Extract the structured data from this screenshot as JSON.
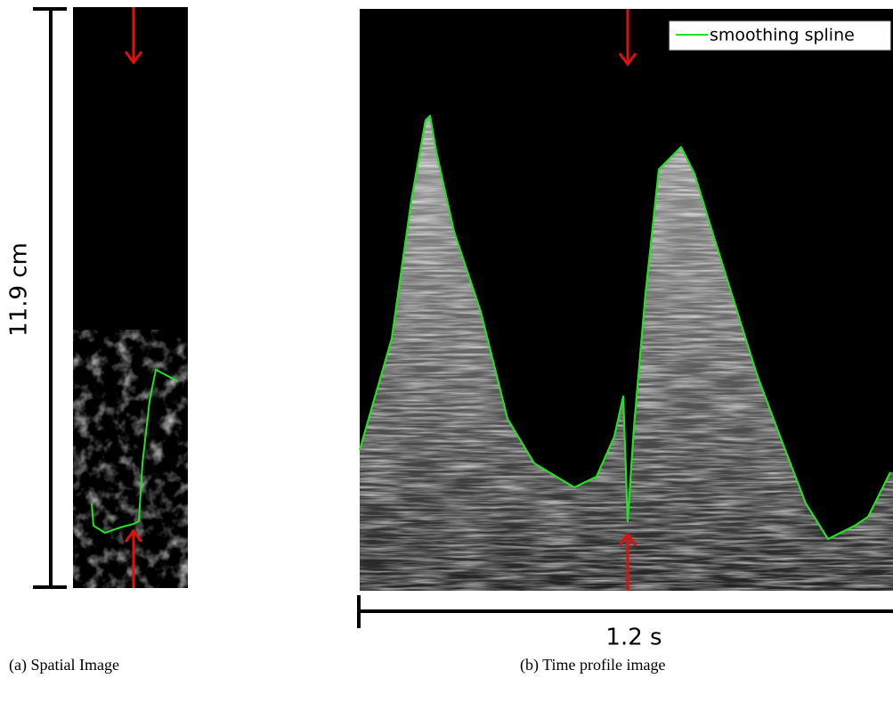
{
  "panel_a": {
    "scale_label": "11.9 cm",
    "caption": "(a) Spatial Image"
  },
  "panel_b": {
    "scale_label": "1.2 s",
    "legend": "smoothing spline",
    "caption": "(b) Time profile image"
  }
}
